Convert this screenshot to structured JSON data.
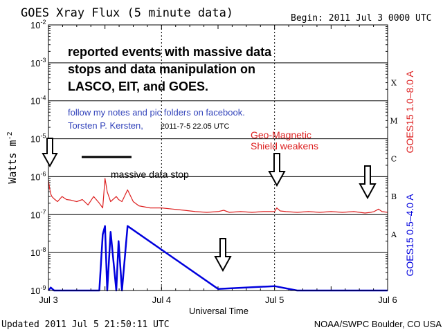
{
  "chart_data": {
    "type": "line",
    "title": "GOES Xray Flux (5 minute data)",
    "begin": "Begin:  2011 Jul 3 0000 UTC",
    "xlabel": "Universal Time",
    "ylabel": "Watts m",
    "ylabel_sup": "-2",
    "x_range_days": [
      0,
      3
    ],
    "x_ticks": [
      {
        "label": "Jul 3",
        "day": 0
      },
      {
        "label": "Jul 4",
        "day": 1
      },
      {
        "label": "Jul 5",
        "day": 2
      },
      {
        "label": "Jul 6",
        "day": 3
      }
    ],
    "y_scale": "log",
    "y_range": [
      1e-09,
      0.01
    ],
    "y_ticks": [
      {
        "base": "10",
        "exp": "-2",
        "value": 0.01
      },
      {
        "base": "10",
        "exp": "-3",
        "value": 0.001
      },
      {
        "base": "10",
        "exp": "-4",
        "value": 0.0001
      },
      {
        "base": "10",
        "exp": "-5",
        "value": 1e-05
      },
      {
        "base": "10",
        "exp": "-6",
        "value": 1e-06
      },
      {
        "base": "10",
        "exp": "-7",
        "value": 1e-07
      },
      {
        "base": "10",
        "exp": "-8",
        "value": 1e-08
      },
      {
        "base": "10",
        "exp": "-9",
        "value": 1e-09
      }
    ],
    "flare_classes": [
      {
        "label": "X",
        "value": 0.0003
      },
      {
        "label": "M",
        "value": 3e-05
      },
      {
        "label": "C",
        "value": 3e-06
      },
      {
        "label": "B",
        "value": 3e-07
      },
      {
        "label": "A",
        "value": 3e-08
      }
    ],
    "series": [
      {
        "name": "GOES15 1.0–8.0 A",
        "color": "#dd2020",
        "x": [
          0.0,
          0.01,
          0.02,
          0.03,
          0.05,
          0.08,
          0.12,
          0.16,
          0.2,
          0.25,
          0.3,
          0.35,
          0.4,
          0.45,
          0.48,
          0.5,
          0.52,
          0.55,
          0.6,
          0.62,
          0.65,
          0.7,
          0.75,
          0.8,
          0.9,
          1.0,
          1.1,
          1.2,
          1.3,
          1.4,
          1.5,
          1.55,
          1.6,
          1.7,
          1.8,
          1.9,
          2.0,
          2.02,
          2.05,
          2.1,
          2.2,
          2.3,
          2.4,
          2.5,
          2.6,
          2.7,
          2.8,
          2.85,
          2.88,
          2.92,
          2.95,
          3.0
        ],
        "y": [
          8e-07,
          5e-07,
          3.5e-07,
          3e-07,
          2.6e-07,
          2.2e-07,
          3e-07,
          2.5e-07,
          2.4e-07,
          2.2e-07,
          2.5e-07,
          1.8e-07,
          3e-07,
          2e-07,
          1.5e-07,
          9e-07,
          4e-07,
          2.2e-07,
          3e-07,
          2.5e-07,
          2.2e-07,
          4.5e-07,
          2.2e-07,
          1.7e-07,
          1.5e-07,
          1.5e-07,
          1.4e-07,
          1.3e-07,
          1.2e-07,
          1.15e-07,
          1.2e-07,
          1.3e-07,
          1.15e-07,
          1.2e-07,
          1.15e-07,
          1.2e-07,
          1.2e-07,
          1.5e-07,
          1.25e-07,
          1.2e-07,
          1.15e-07,
          1.2e-07,
          1.15e-07,
          1.2e-07,
          1.15e-07,
          1.2e-07,
          1.1e-07,
          1.15e-07,
          1.2e-07,
          1.4e-07,
          1.2e-07,
          1.15e-07
        ]
      },
      {
        "name": "GOES15 0.5–4.0 A",
        "color": "#0000dd",
        "x": [
          0.0,
          0.02,
          0.05,
          0.3,
          0.45,
          0.48,
          0.5,
          0.52,
          0.55,
          0.6,
          0.62,
          0.65,
          0.7,
          1.5,
          2.0,
          2.2,
          2.5,
          2.8,
          3.0
        ],
        "y": [
          1e-09,
          1.2e-09,
          1e-09,
          1e-09,
          1e-09,
          3e-08,
          5e-08,
          1e-09,
          3.5e-08,
          1e-09,
          2e-08,
          1e-09,
          5e-08,
          1.1e-09,
          1.3e-09,
          1e-09,
          1e-09,
          1e-09,
          1e-09
        ]
      }
    ],
    "right_labels": [
      {
        "text": "GOES15 1.0–8.0 A",
        "color": "#dd2020"
      },
      {
        "text": "GOES15 0.5–4.0 A",
        "color": "#0000dd"
      }
    ]
  },
  "annotations": {
    "headline": [
      "reported events with massive data",
      "stops and data manipulation on",
      "LASCO, EIT, and GOES."
    ],
    "note_line1": "follow my notes and pic folders on facebook.",
    "note_line2": "Torsten P. Kersten,",
    "note_date": "2011-7-5 22.05 UTC",
    "geo_line1": "Geo-Magnetic",
    "geo_line2": "Shield weakens",
    "data_stop": "massive data stop",
    "headline_color": "#000000",
    "note_color": "#3344bb",
    "geo_color": "#dd2020"
  },
  "footer": {
    "updated": "Updated 2011 Jul  5 21:50:11 UTC",
    "credit": "NOAA/SWPC Boulder, CO USA"
  }
}
